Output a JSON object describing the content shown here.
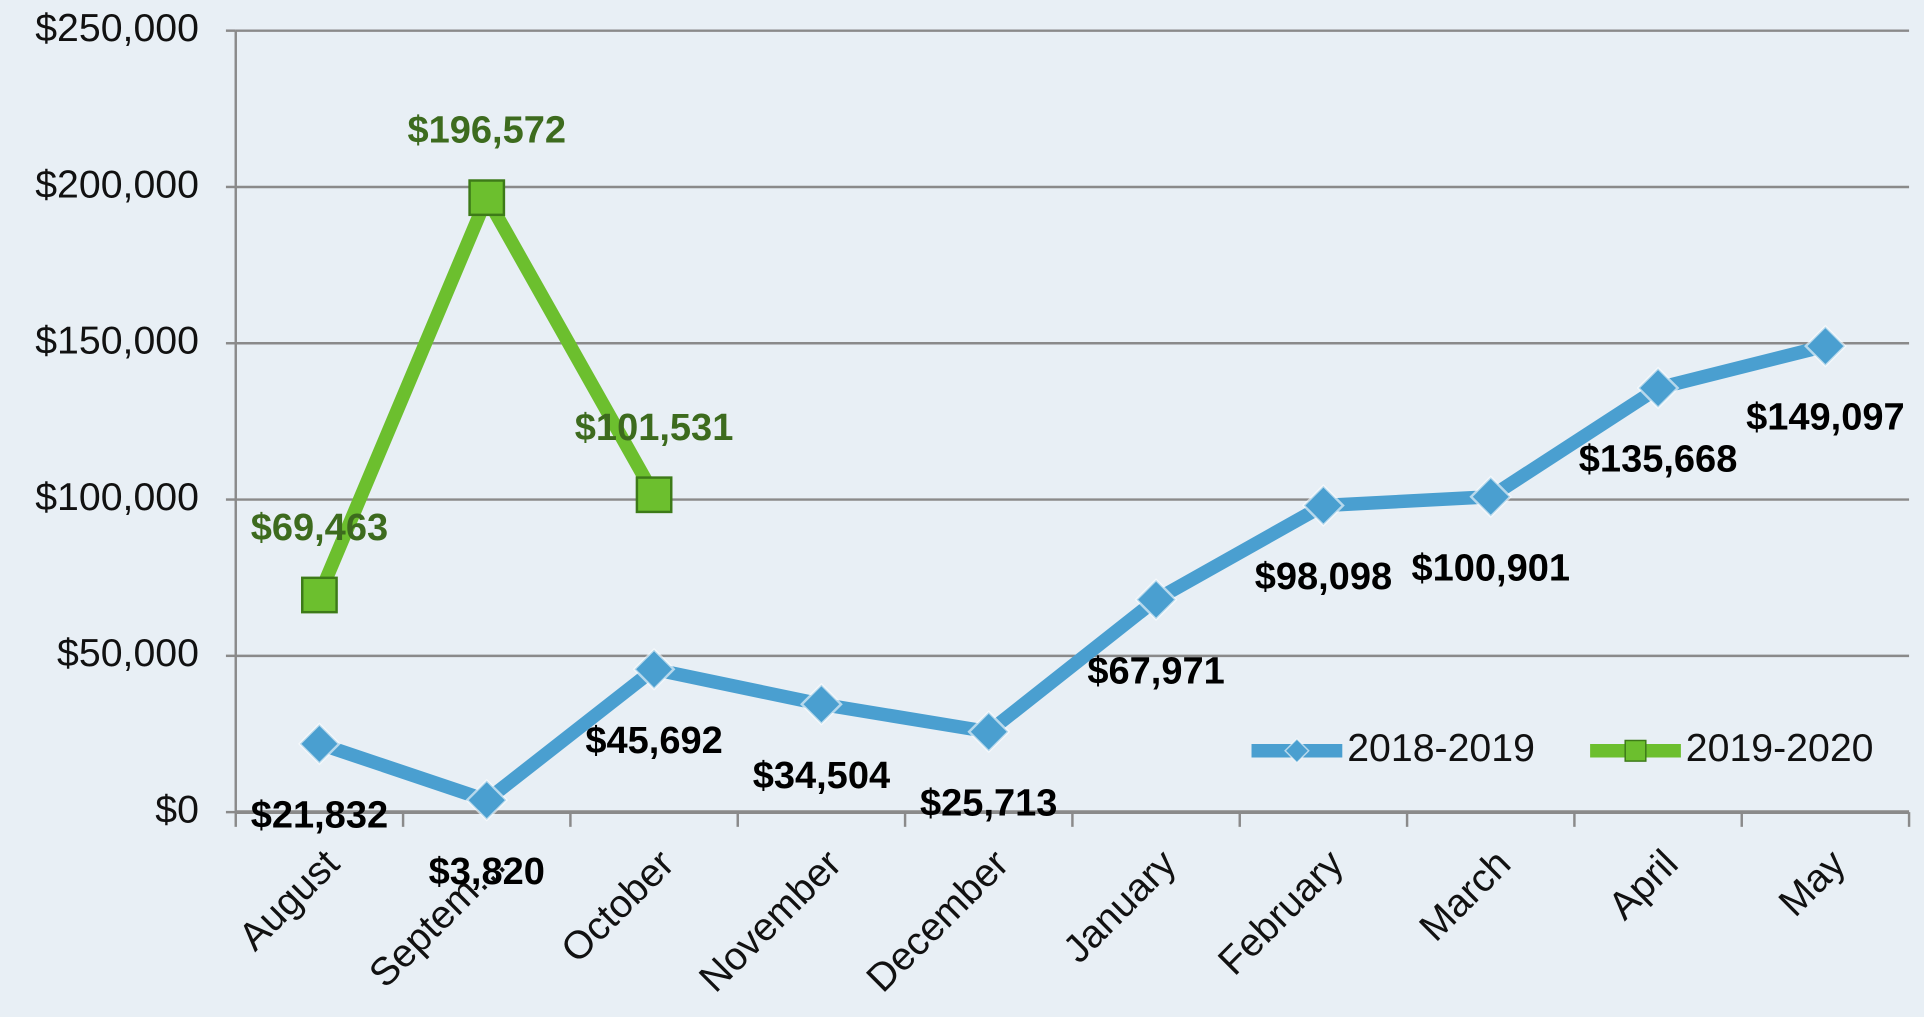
{
  "chart_data": {
    "type": "line",
    "categories": [
      "August",
      "Septem…",
      "October",
      "November",
      "December",
      "January",
      "February",
      "March",
      "April",
      "May"
    ],
    "series": [
      {
        "name": "2018-2019",
        "color": "#4a9fd0",
        "label_color": "#000000",
        "marker": "diamond",
        "values": [
          21832,
          3820,
          45692,
          34504,
          25713,
          67971,
          98098,
          100901,
          135668,
          149097
        ],
        "value_labels": [
          "$21,832",
          "$3,820",
          "$45,692",
          "$34,504",
          "$25,713",
          "$67,971",
          "$98,098",
          "$100,901",
          "$135,668",
          "$149,097"
        ]
      },
      {
        "name": "2019-2020",
        "color": "#6cbf2e",
        "label_color": "#3d6b1e",
        "marker": "square",
        "values": [
          69463,
          196572,
          101531,
          null,
          null,
          null,
          null,
          null,
          null,
          null
        ],
        "value_labels": [
          "$69,463",
          "$196,572",
          "$101,531",
          null,
          null,
          null,
          null,
          null,
          null,
          null
        ]
      }
    ],
    "ylim": [
      0,
      250000
    ],
    "yticks": [
      {
        "value": 0,
        "label": "$0"
      },
      {
        "value": 50000,
        "label": "$50,000"
      },
      {
        "value": 100000,
        "label": "$100,000"
      },
      {
        "value": 150000,
        "label": "$150,000"
      },
      {
        "value": 200000,
        "label": "$200,000"
      },
      {
        "value": 250000,
        "label": "$250,000"
      }
    ],
    "grid": true,
    "legend": "lower right"
  }
}
